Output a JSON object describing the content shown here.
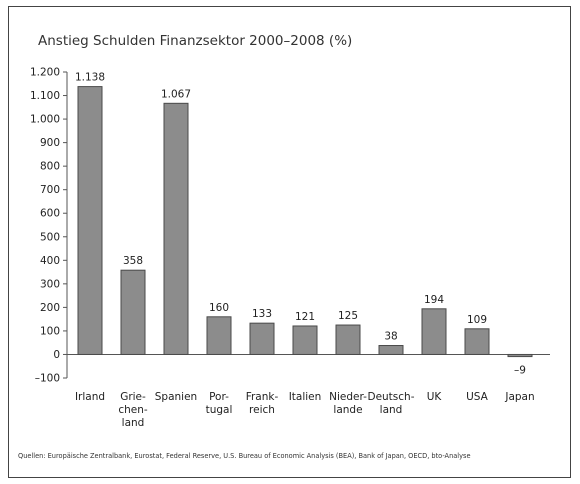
{
  "chart_data": {
    "type": "bar",
    "title": "Anstieg Schulden Finanzsektor 2000–2008 (%)",
    "xlabel": "",
    "ylabel": "",
    "categories": [
      "Irland",
      "Grie-\nchen-\nland",
      "Spanien",
      "Por-\ntugal",
      "Frank-\nreich",
      "Italien",
      "Nieder-\nlande",
      "Deutsch-\nland",
      "UK",
      "USA",
      "Japan"
    ],
    "values": [
      1138,
      358,
      1067,
      160,
      133,
      121,
      125,
      38,
      194,
      109,
      -9
    ],
    "value_labels": [
      "1.138",
      "358",
      "1.067",
      "160",
      "133",
      "121",
      "125",
      "38",
      "194",
      "109",
      "–9"
    ],
    "ylim": [
      -100,
      1200
    ],
    "yticks": [
      -100,
      0,
      100,
      200,
      300,
      400,
      500,
      600,
      700,
      800,
      900,
      1000,
      1100,
      1200
    ],
    "ytick_labels": [
      "–100",
      "0",
      "100",
      "200",
      "300",
      "400",
      "500",
      "600",
      "700",
      "800",
      "900",
      "1.000",
      "1.100",
      "1.200"
    ],
    "grid": false,
    "bar_color": "#8c8c8c",
    "bar_edge_color": "#4a4a4a"
  },
  "source": "Quellen: Europäische Zentralbank, Eurostat, Federal Reserve, U.S. Bureau of Economic Analysis (BEA), Bank of Japan, OECD, bto-Analyse"
}
